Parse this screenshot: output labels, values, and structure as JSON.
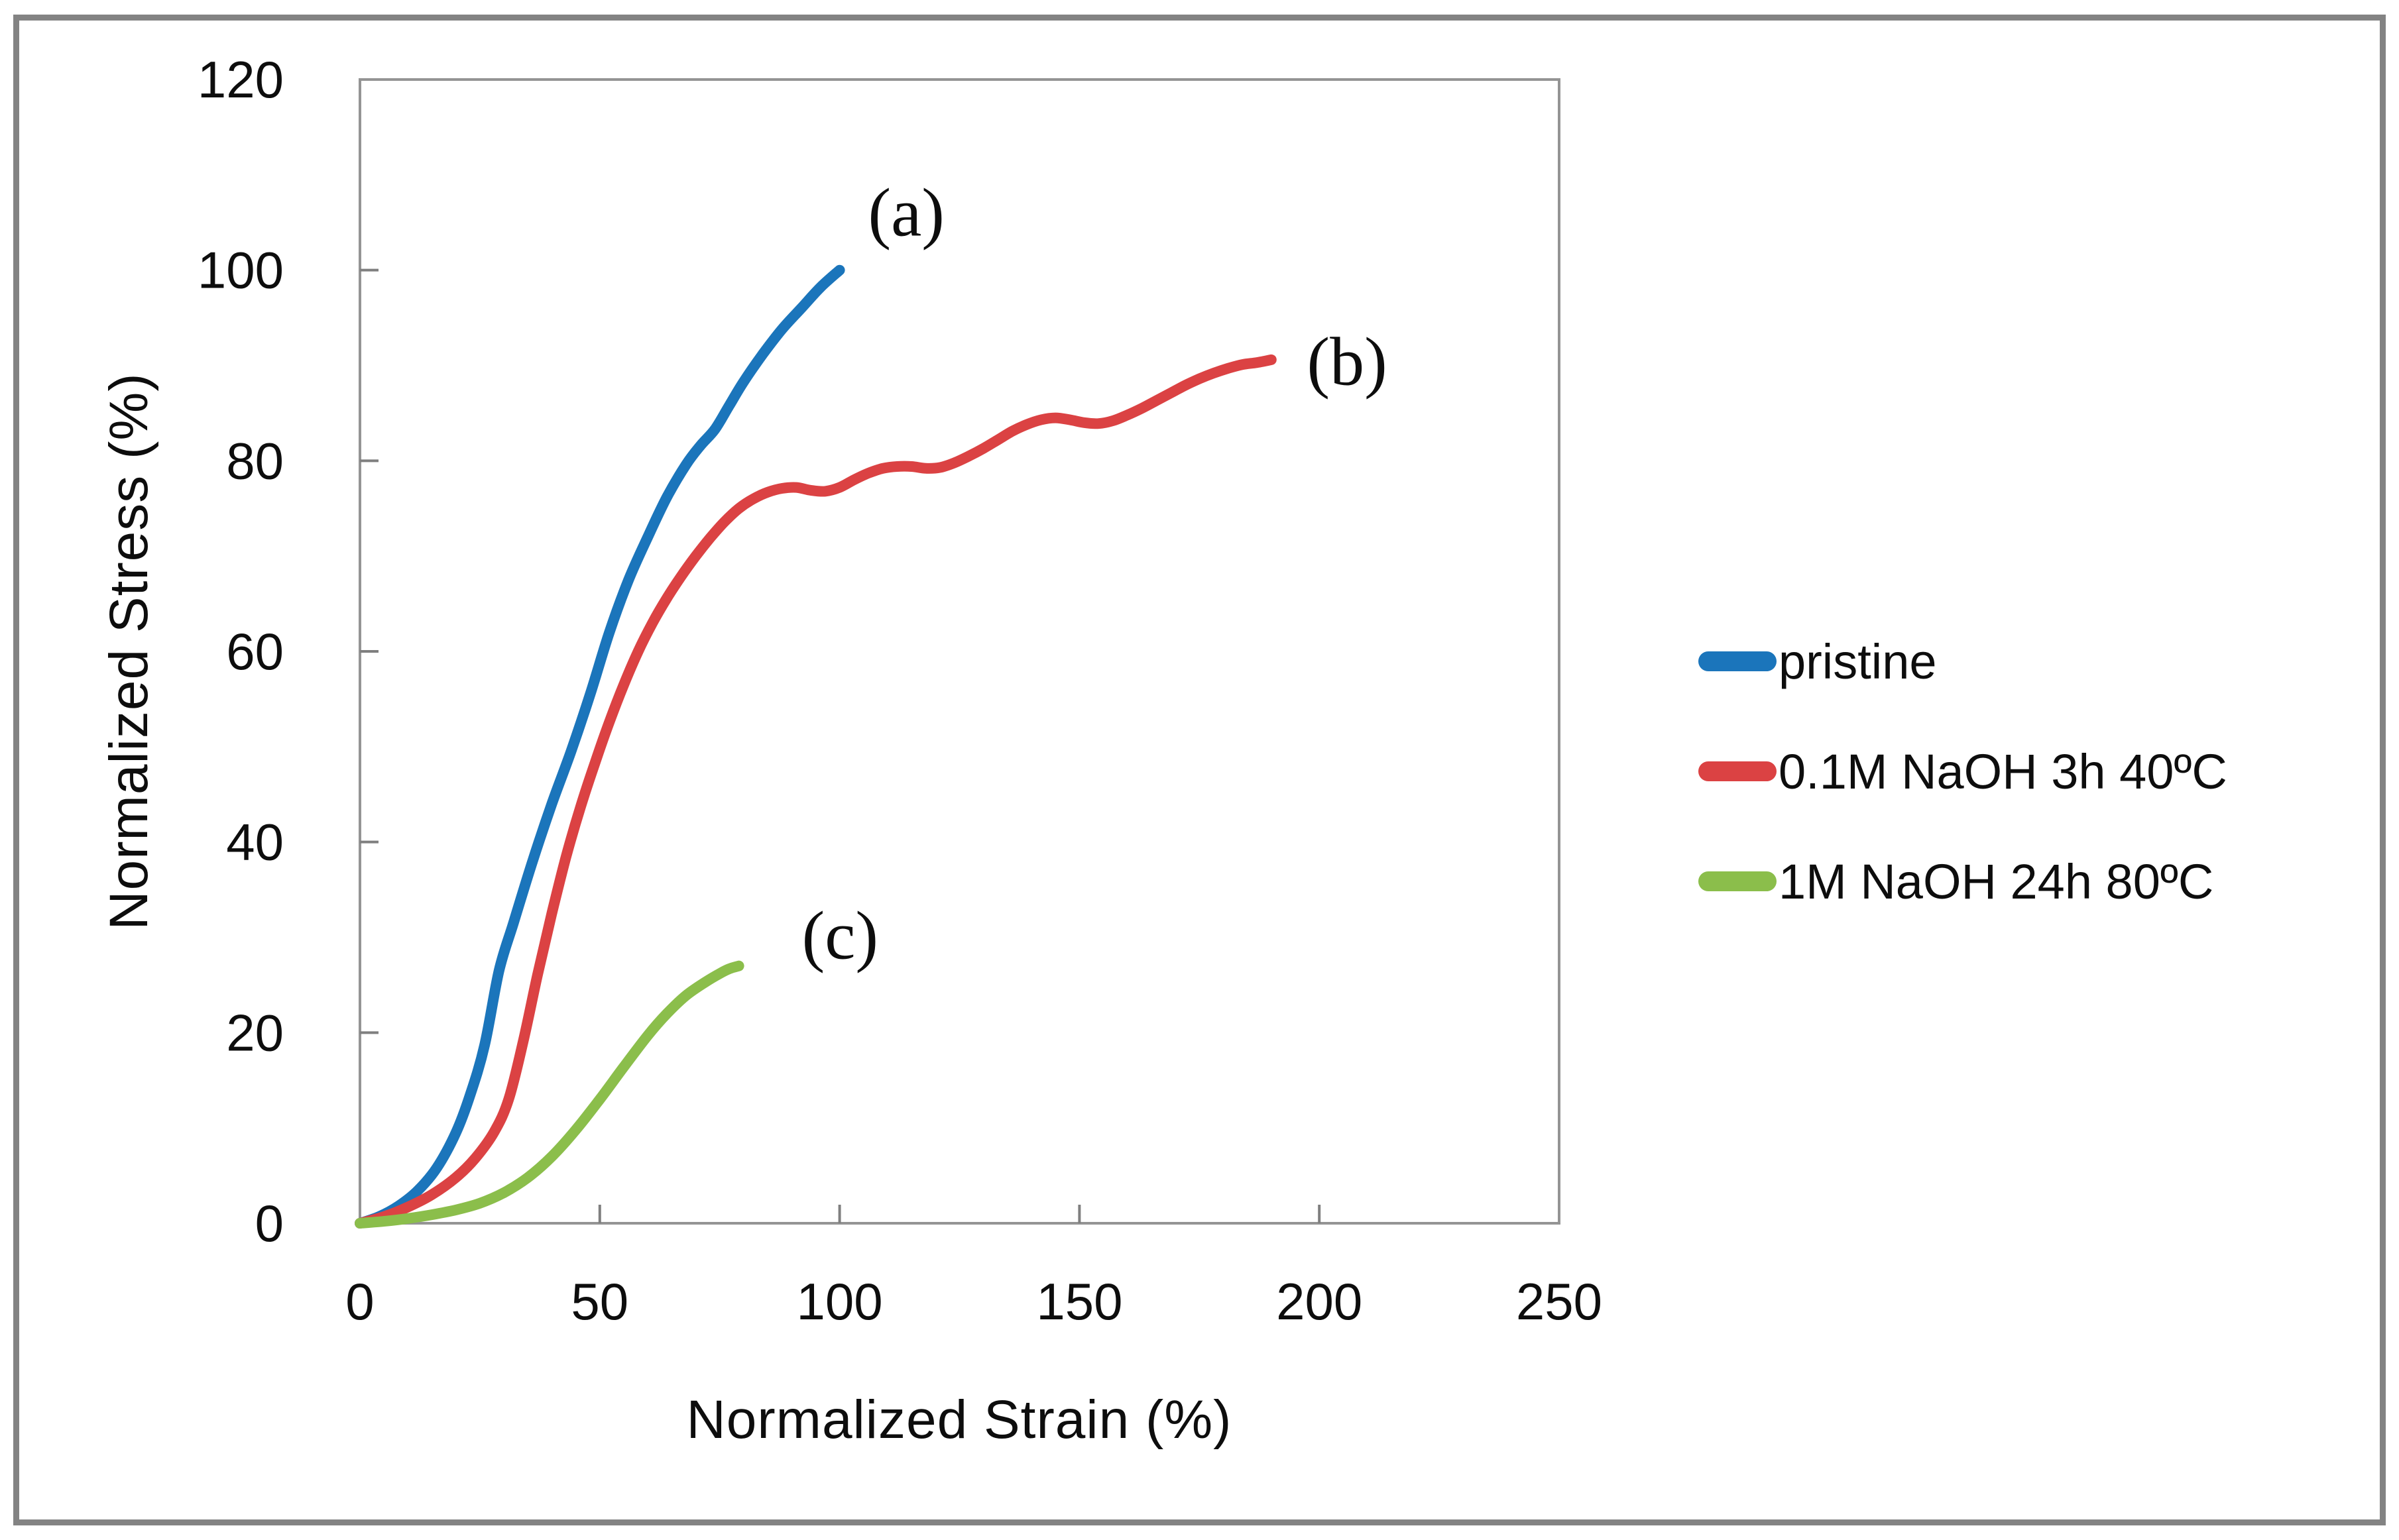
{
  "figure": {
    "background": "#ffffff",
    "frame_color": "#838383",
    "axis_line_color": "#949494",
    "tick_color": "#7f7f7f",
    "text_color": "#0d0d0d"
  },
  "chart_data": {
    "type": "line",
    "title": "",
    "xlabel": "Normalized Strain (%)",
    "ylabel": "Normalized Stress (%)",
    "xlim": [
      0,
      250
    ],
    "ylim": [
      0,
      120
    ],
    "x_ticks": [
      0,
      50,
      100,
      150,
      200,
      250
    ],
    "y_ticks": [
      0,
      20,
      40,
      60,
      80,
      100,
      120
    ],
    "grid": false,
    "legend_position": "right-middle",
    "series": [
      {
        "name": "pristine",
        "label": "pristine",
        "color": "#1b75bb",
        "points": [
          [
            0,
            0
          ],
          [
            4,
            0.7
          ],
          [
            8,
            1.8
          ],
          [
            12,
            3.4
          ],
          [
            16,
            5.8
          ],
          [
            20,
            9.5
          ],
          [
            23,
            13.5
          ],
          [
            26,
            18.7
          ],
          [
            29,
            26.5
          ],
          [
            32,
            31.5
          ],
          [
            36,
            38
          ],
          [
            40,
            44
          ],
          [
            44,
            49.5
          ],
          [
            48,
            55.5
          ],
          [
            52,
            62
          ],
          [
            56,
            67.5
          ],
          [
            60,
            72
          ],
          [
            64,
            76.2
          ],
          [
            68,
            79.6
          ],
          [
            71,
            81.6
          ],
          [
            74,
            83.3
          ],
          [
            77,
            85.8
          ],
          [
            80,
            88.3
          ],
          [
            84,
            91.2
          ],
          [
            88,
            93.8
          ],
          [
            92,
            96
          ],
          [
            96,
            98.2
          ],
          [
            100,
            100
          ]
        ]
      },
      {
        "name": "naoh-0.1m-3h-40c",
        "label": "0.1M NaOH 3h 40ºC",
        "color": "#db4243",
        "points": [
          [
            0,
            0
          ],
          [
            5,
            0.7
          ],
          [
            10,
            1.7
          ],
          [
            15,
            3
          ],
          [
            20,
            4.8
          ],
          [
            24,
            6.8
          ],
          [
            28,
            9.6
          ],
          [
            31,
            13
          ],
          [
            34,
            19
          ],
          [
            37,
            26
          ],
          [
            40,
            32.5
          ],
          [
            43,
            38.5
          ],
          [
            46,
            43.7
          ],
          [
            49,
            48.3
          ],
          [
            52,
            52.6
          ],
          [
            55,
            56.5
          ],
          [
            58,
            60
          ],
          [
            61,
            63
          ],
          [
            64,
            65.6
          ],
          [
            67,
            67.9
          ],
          [
            70,
            70
          ],
          [
            73,
            71.9
          ],
          [
            76,
            73.6
          ],
          [
            79,
            75
          ],
          [
            82,
            76
          ],
          [
            85,
            76.7
          ],
          [
            88,
            77.1
          ],
          [
            91,
            77.2
          ],
          [
            94,
            76.9
          ],
          [
            97,
            76.8
          ],
          [
            100,
            77.2
          ],
          [
            103,
            78
          ],
          [
            106,
            78.7
          ],
          [
            109,
            79.2
          ],
          [
            112,
            79.4
          ],
          [
            115,
            79.4
          ],
          [
            118,
            79.2
          ],
          [
            121,
            79.3
          ],
          [
            124,
            79.8
          ],
          [
            127,
            80.5
          ],
          [
            130,
            81.3
          ],
          [
            133,
            82.2
          ],
          [
            136,
            83.1
          ],
          [
            139,
            83.8
          ],
          [
            142,
            84.3
          ],
          [
            145,
            84.5
          ],
          [
            148,
            84.3
          ],
          [
            151,
            84
          ],
          [
            154,
            83.9
          ],
          [
            157,
            84.2
          ],
          [
            160,
            84.8
          ],
          [
            163,
            85.5
          ],
          [
            166,
            86.3
          ],
          [
            169,
            87.1
          ],
          [
            172,
            87.9
          ],
          [
            175,
            88.6
          ],
          [
            178,
            89.2
          ],
          [
            181,
            89.7
          ],
          [
            184,
            90.1
          ],
          [
            187,
            90.3
          ],
          [
            190,
            90.6
          ]
        ]
      },
      {
        "name": "naoh-1m-24h-80c",
        "label": "1M NaOH 24h 80ºC",
        "color": "#8bbe4b",
        "points": [
          [
            0,
            0
          ],
          [
            5,
            0.2
          ],
          [
            10,
            0.5
          ],
          [
            15,
            0.9
          ],
          [
            20,
            1.4
          ],
          [
            25,
            2.1
          ],
          [
            30,
            3.2
          ],
          [
            35,
            4.8
          ],
          [
            40,
            7
          ],
          [
            45,
            9.8
          ],
          [
            50,
            13
          ],
          [
            55,
            16.4
          ],
          [
            60,
            19.7
          ],
          [
            64,
            22
          ],
          [
            68,
            23.9
          ],
          [
            72,
            25.3
          ],
          [
            75,
            26.2
          ],
          [
            77,
            26.7
          ],
          [
            79,
            27
          ]
        ]
      }
    ],
    "annotations": [
      {
        "text": "(a)",
        "x": 113.9,
        "y": 106.0,
        "series": "pristine"
      },
      {
        "text": "(b)",
        "x": 205.8,
        "y": 90.4,
        "series": "naoh-0.1m-3h-40c"
      },
      {
        "text": "(c)",
        "x": 100.1,
        "y": 30.2,
        "series": "naoh-1m-24h-80c"
      }
    ]
  }
}
